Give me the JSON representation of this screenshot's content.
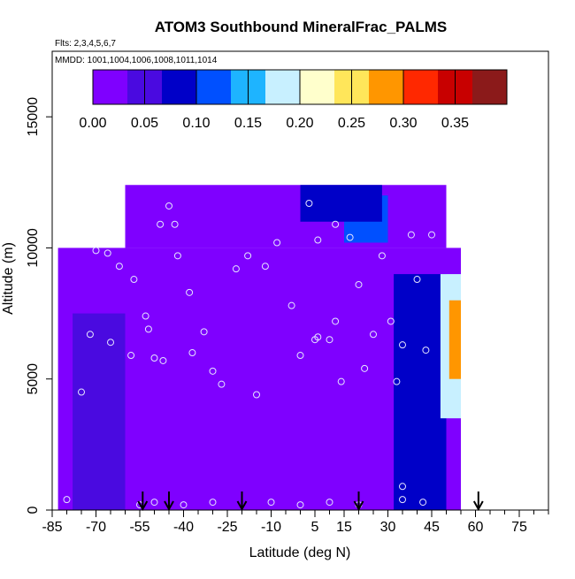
{
  "chart_data": {
    "type": "heatmap",
    "title": "ATOM3 Southbound MineralFrac_PALMS",
    "subtitle_flights": "Flts: 2,3,4,5,6,7",
    "subtitle_dates": "MMDD: 1001,1004,1006,1008,1011,1014",
    "xlabel": "Latitude (deg N)",
    "ylabel": "Altitude (m)",
    "xlim": [
      -85,
      85
    ],
    "ylim": [
      0,
      17500
    ],
    "x_ticks": [
      -85,
      -70,
      -55,
      -40,
      -25,
      -10,
      5,
      15,
      30,
      45,
      60,
      75
    ],
    "y_ticks": [
      0,
      5000,
      10000,
      15000
    ],
    "colorbar": {
      "min": 0.0,
      "max": 0.4,
      "ticks": [
        "0.00",
        "0.05",
        "0.10",
        "0.15",
        "0.20",
        "0.25",
        "0.30",
        "0.35"
      ],
      "tick_values": [
        0.0,
        0.05,
        0.1,
        0.15,
        0.2,
        0.25,
        0.3,
        0.35
      ],
      "colors": [
        "#7f00ff",
        "#4a0ae0",
        "#0000c8",
        "#0050ff",
        "#1eb4ff",
        "#c8f0ff",
        "#ffffcc",
        "#ffe65a",
        "#ff9600",
        "#ff2800",
        "#c80000",
        "#8b1a1a"
      ]
    },
    "arrows_latitude": [
      -54,
      -45,
      -20,
      20,
      61
    ],
    "field_regions": [
      {
        "lat_min": -83,
        "lat_max": 55,
        "alt_min": 0,
        "alt_max": 10000,
        "value": 0.02
      },
      {
        "lat_min": -60,
        "lat_max": 50,
        "alt_min": 10000,
        "alt_max": 12400,
        "value": 0.02
      },
      {
        "lat_min": -78,
        "lat_max": -60,
        "alt_min": 0,
        "alt_max": 7500,
        "value": 0.05
      },
      {
        "lat_min": 32,
        "lat_max": 50,
        "alt_min": 0,
        "alt_max": 9000,
        "value": 0.07
      },
      {
        "lat_min": 48,
        "lat_max": 55,
        "alt_min": 3500,
        "alt_max": 9000,
        "value": 0.17
      },
      {
        "lat_min": 51,
        "lat_max": 55,
        "alt_min": 5000,
        "alt_max": 8000,
        "value": 0.3
      },
      {
        "lat_min": 15,
        "lat_max": 30,
        "alt_min": 10200,
        "alt_max": 12000,
        "value": 0.12
      },
      {
        "lat_min": 0,
        "lat_max": 28,
        "alt_min": 11000,
        "alt_max": 12400,
        "value": 0.08
      }
    ],
    "samples": [
      [
        -80,
        400
      ],
      [
        -75,
        4500
      ],
      [
        -72,
        6700
      ],
      [
        -70,
        9900
      ],
      [
        -66,
        9800
      ],
      [
        -62,
        9300
      ],
      [
        -57,
        8800
      ],
      [
        -53,
        7400
      ],
      [
        -52,
        6900
      ],
      [
        -50,
        5800
      ],
      [
        -48,
        10900
      ],
      [
        -45,
        11600
      ],
      [
        -43,
        10900
      ],
      [
        -42,
        9700
      ],
      [
        -38,
        8300
      ],
      [
        -33,
        6800
      ],
      [
        -30,
        5300
      ],
      [
        -27,
        4800
      ],
      [
        -22,
        9200
      ],
      [
        -18,
        9700
      ],
      [
        -12,
        9300
      ],
      [
        -8,
        10200
      ],
      [
        -3,
        7800
      ],
      [
        0,
        5900
      ],
      [
        3,
        11700
      ],
      [
        6,
        10300
      ],
      [
        10,
        6500
      ],
      [
        12,
        7200
      ],
      [
        14,
        4900
      ],
      [
        17,
        10400
      ],
      [
        20,
        8600
      ],
      [
        22,
        5400
      ],
      [
        25,
        6700
      ],
      [
        28,
        9700
      ],
      [
        31,
        7200
      ],
      [
        33,
        4900
      ],
      [
        35,
        6300
      ],
      [
        38,
        10500
      ],
      [
        40,
        8800
      ],
      [
        43,
        6100
      ],
      [
        45,
        10500
      ],
      [
        -55,
        200
      ],
      [
        -50,
        300
      ],
      [
        -40,
        200
      ],
      [
        -30,
        300
      ],
      [
        -10,
        300
      ],
      [
        0,
        200
      ],
      [
        10,
        300
      ],
      [
        20,
        200
      ],
      [
        35,
        900
      ],
      [
        35,
        400
      ],
      [
        42,
        300
      ],
      [
        -65,
        6400
      ],
      [
        -58,
        5900
      ],
      [
        -47,
        5700
      ],
      [
        -37,
        6000
      ],
      [
        5,
        6500
      ],
      [
        6,
        6600
      ],
      [
        -15,
        4400
      ],
      [
        12,
        10900
      ]
    ]
  }
}
